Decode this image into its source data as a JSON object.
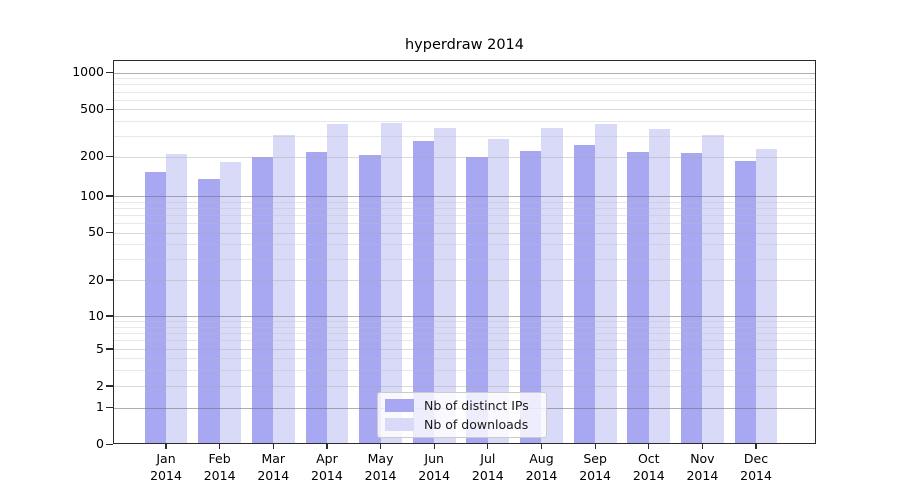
{
  "title": "hyperdraw 2014",
  "chart_data": {
    "type": "bar",
    "title": "hyperdraw 2014",
    "xlabel": "",
    "ylabel": "",
    "categories": [
      "Jan",
      "Feb",
      "Mar",
      "Apr",
      "May",
      "Jun",
      "Jul",
      "Aug",
      "Sep",
      "Oct",
      "Nov",
      "Dec"
    ],
    "year_label": "2014",
    "series": [
      {
        "name": "Nb of distinct IPs",
        "color": "#a7a7f2",
        "values": [
          152,
          136,
          198,
          218,
          206,
          270,
          198,
          225,
          250,
          218,
          215,
          184
        ]
      },
      {
        "name": "Nb of downloads",
        "color": "#d9d9f8",
        "values": [
          210,
          181,
          302,
          375,
          385,
          350,
          282,
          346,
          375,
          340,
          306,
          233
        ]
      }
    ],
    "yticks": [
      0,
      1,
      2,
      5,
      10,
      20,
      50,
      100,
      200,
      500,
      1000
    ],
    "yaxis_scale": "log-like with 0 baseline",
    "ylim": [
      0,
      1150
    ],
    "grid": true,
    "legend_position": "lower center"
  }
}
